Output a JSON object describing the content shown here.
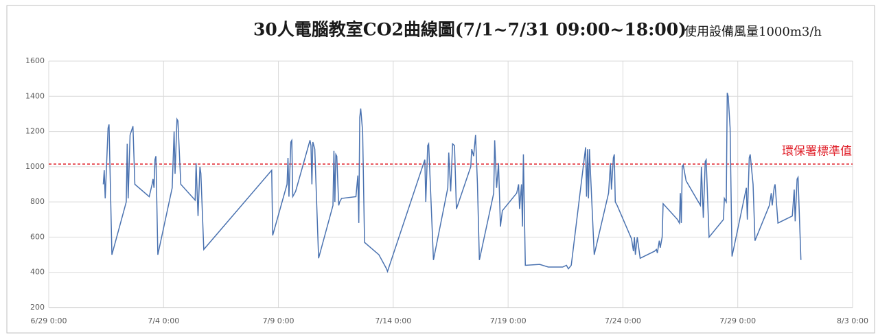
{
  "chart_data": {
    "type": "line",
    "title": "30人電腦教室CO2曲線圖(7/1~7/31  09:00~18:00)",
    "subtitle": "使用設備風量1000m3/h",
    "xlim": [
      "6/29 0:00",
      "8/3 0:00"
    ],
    "xticks": [
      "6/29 0:00",
      "7/4 0:00",
      "7/9 0:00",
      "7/14 0:00",
      "7/19 0:00",
      "7/24 0:00",
      "7/29 0:00",
      "8/3 0:00"
    ],
    "ylim": [
      200,
      1600
    ],
    "yticks": [
      200,
      400,
      600,
      800,
      1000,
      1200,
      1400,
      1600
    ],
    "grid": true,
    "reference_line": {
      "value": 1015,
      "label": "環保署標準值",
      "color": "#e0202a"
    },
    "x": [
      "7/1 9:00",
      "7/1 10:00",
      "7/1 11:00",
      "7/1 14:00",
      "7/1 15:00",
      "7/1 18:00",
      "7/2 9:00",
      "7/2 10:00",
      "7/2 11:00",
      "7/2 13:00",
      "7/2 16:00",
      "7/2 18:00",
      "7/3 9:00",
      "7/3 12:00",
      "7/3 13:00",
      "7/3 14:00",
      "7/3 15:00",
      "7/3 16:00",
      "7/3 18:00",
      "7/4 9:00",
      "7/4 11:00",
      "7/4 12:00",
      "7/4 14:00",
      "7/4 15:00",
      "7/4 18:00",
      "7/5 9:00",
      "7/5 10:00",
      "7/5 12:00",
      "7/5 14:00",
      "7/5 15:00",
      "7/5 18:00",
      "7/8 17:00",
      "7/8 18:00",
      "7/9 9:00",
      "7/9 10:00",
      "7/9 11:00",
      "7/9 13:00",
      "7/9 14:00",
      "7/9 15:00",
      "7/9 18:00",
      "7/10 9:00",
      "7/10 10:00",
      "7/10 11:00",
      "7/10 12:00",
      "7/10 14:00",
      "7/10 18:00",
      "7/11 9:00",
      "7/11 10:00",
      "7/11 11:00",
      "7/11 12:00",
      "7/11 13:00",
      "7/11 15:00",
      "7/11 16:00",
      "7/11 18:00",
      "7/12 9:00",
      "7/12 11:00",
      "7/12 12:00",
      "7/12 13:00",
      "7/12 14:00",
      "7/12 16:00",
      "7/12 18:00",
      "7/13 9:00",
      "7/13 17:00",
      "7/13 18:00",
      "7/15 9:00",
      "7/15 10:00",
      "7/15 12:00",
      "7/15 13:00",
      "7/15 18:00",
      "7/16 9:00",
      "7/16 10:00",
      "7/16 12:00",
      "7/16 14:00",
      "7/16 16:00",
      "7/16 18:00",
      "7/17 9:00",
      "7/17 10:00",
      "7/17 12:00",
      "7/17 14:00",
      "7/17 16:00",
      "7/17 18:00",
      "7/18 9:00",
      "7/18 10:00",
      "7/18 12:00",
      "7/18 14:00",
      "7/18 16:00",
      "7/18 18:00",
      "7/19 9:00",
      "7/19 11:00",
      "7/19 12:00",
      "7/19 14:00",
      "7/19 15:00",
      "7/19 16:00",
      "7/19 18:00",
      "7/20 9:00",
      "7/20 18:00",
      "7/21 9:00",
      "7/21 13:00",
      "7/21 15:00",
      "7/21 18:00",
      "7/22 9:00",
      "7/22 10:00",
      "7/22 11:00",
      "7/22 12:00",
      "7/22 13:00",
      "7/22 18:00",
      "7/23 9:00",
      "7/23 11:00",
      "7/23 12:00",
      "7/23 14:00",
      "7/23 15:00",
      "7/23 16:00",
      "7/23 18:00",
      "7/24 9:00",
      "7/24 11:00",
      "7/24 12:00",
      "7/24 13:00",
      "7/24 15:00",
      "7/24 18:00",
      "7/25 9:00",
      "7/25 11:00",
      "7/25 12:00",
      "7/25 14:00",
      "7/25 15:00",
      "7/25 17:00",
      "7/25 18:00",
      "7/26 9:00",
      "7/26 11:00",
      "7/26 12:00",
      "7/26 13:00",
      "7/26 14:00",
      "7/26 15:00",
      "7/26 18:00",
      "7/27 9:00",
      "7/27 10:00",
      "7/27 12:00",
      "7/27 14:00",
      "7/27 15:00",
      "7/27 18:00",
      "7/28 9:00",
      "7/28 10:00",
      "7/28 12:00",
      "7/28 13:00",
      "7/28 14:00",
      "7/28 16:00",
      "7/28 18:00",
      "7/29 9:00",
      "7/29 10:00",
      "7/29 12:00",
      "7/29 13:00",
      "7/29 16:00",
      "7/29 18:00",
      "7/30 9:00",
      "7/30 11:00",
      "7/30 12:00",
      "7/30 14:00",
      "7/30 15:00",
      "7/30 18:00",
      "7/31 9:00",
      "7/31 11:00",
      "7/31 12:00",
      "7/31 14:00",
      "7/31 15:00",
      "7/31 18:00"
    ],
    "series": [
      {
        "color": "#4a72b0",
        "values": [
          900,
          980,
          820,
          1220,
          1240,
          500,
          800,
          1130,
          820,
          1180,
          1230,
          900,
          830,
          900,
          930,
          880,
          1040,
          1060,
          500,
          880,
          1200,
          960,
          1270,
          1260,
          900,
          810,
          1020,
          720,
          1000,
          960,
          530,
          980,
          610,
          900,
          1050,
          830,
          1140,
          1150,
          830,
          860,
          1150,
          1120,
          900,
          1140,
          1100,
          480,
          780,
          1090,
          800,
          1070,
          1060,
          780,
          800,
          820,
          830,
          950,
          680,
          1280,
          1330,
          1200,
          570,
          500,
          420,
          405,
          1040,
          800,
          1120,
          1130,
          470,
          880,
          1080,
          860,
          1130,
          1120,
          760,
          1000,
          1100,
          1060,
          1180,
          900,
          470,
          850,
          1150,
          880,
          1020,
          660,
          750,
          850,
          900,
          760,
          900,
          660,
          1070,
          440,
          445,
          430,
          430,
          440,
          420,
          440,
          1110,
          830,
          1100,
          820,
          1100,
          500,
          850,
          1020,
          870,
          1050,
          1070,
          800,
          780,
          590,
          520,
          600,
          500,
          600,
          480,
          520,
          530,
          510,
          580,
          540,
          600,
          790,
          700,
          680,
          850,
          680,
          1000,
          1010,
          920,
          780,
          1000,
          710,
          1030,
          1040,
          600,
          700,
          820,
          800,
          1420,
          1400,
          1220,
          490,
          880,
          700,
          1050,
          1070,
          900,
          580,
          780,
          850,
          780,
          880,
          900,
          680,
          720,
          870,
          690,
          930,
          940,
          470
        ]
      }
    ]
  }
}
